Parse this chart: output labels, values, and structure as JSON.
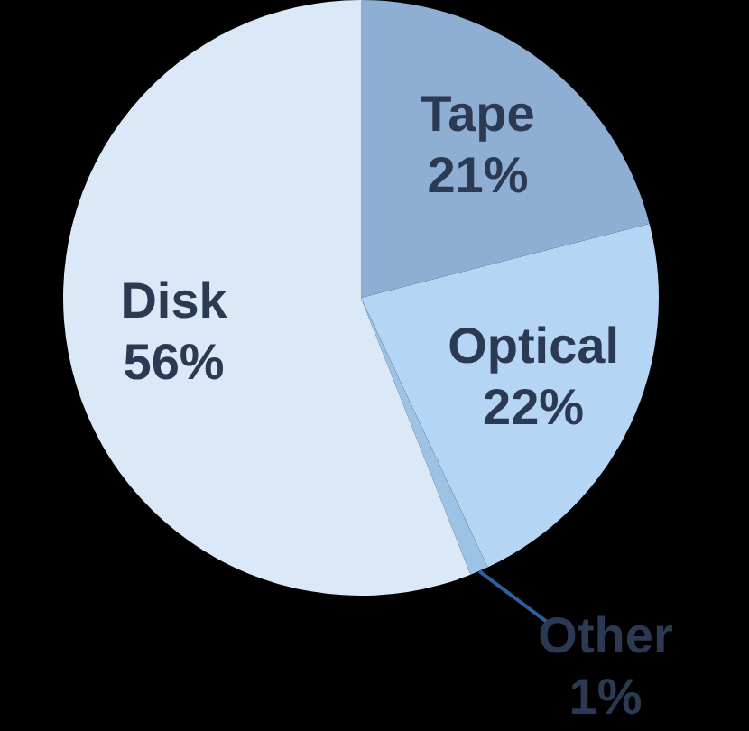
{
  "chart_data": {
    "type": "pie",
    "categories": [
      "Tape",
      "Optical",
      "Other",
      "Disk"
    ],
    "values": [
      21,
      22,
      1,
      56
    ],
    "value_labels": [
      "21%",
      "22%",
      "1%",
      "56%"
    ],
    "colors": [
      "#8eaed3",
      "#b4d6f4",
      "#9cc3e6",
      "#dbe8f8"
    ]
  }
}
